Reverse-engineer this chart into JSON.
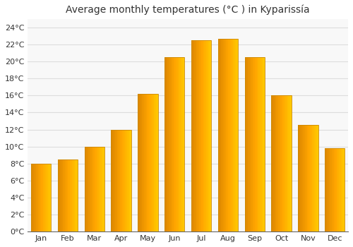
{
  "title": "Average monthly temperatures (°C ) in Kyparissía",
  "months": [
    "Jan",
    "Feb",
    "Mar",
    "Apr",
    "May",
    "Jun",
    "Jul",
    "Aug",
    "Sep",
    "Oct",
    "Nov",
    "Dec"
  ],
  "values": [
    8.0,
    8.5,
    10.0,
    12.0,
    16.2,
    20.5,
    22.5,
    22.7,
    20.5,
    16.0,
    12.5,
    9.8
  ],
  "ylim": [
    0,
    25
  ],
  "yticks": [
    0,
    2,
    4,
    6,
    8,
    10,
    12,
    14,
    16,
    18,
    20,
    22,
    24
  ],
  "ytick_labels": [
    "0°C",
    "2°C",
    "4°C",
    "6°C",
    "8°C",
    "10°C",
    "12°C",
    "14°C",
    "16°C",
    "18°C",
    "20°C",
    "22°C",
    "24°C"
  ],
  "bar_color_main": "#FFA500",
  "bar_color_highlight": "#FFD040",
  "bar_edge_color": "#CC8800",
  "background_color": "#FFFFFF",
  "plot_bg_color": "#F8F8F8",
  "grid_color": "#DDDDDD",
  "title_fontsize": 10,
  "tick_fontsize": 8,
  "bar_width": 0.75
}
